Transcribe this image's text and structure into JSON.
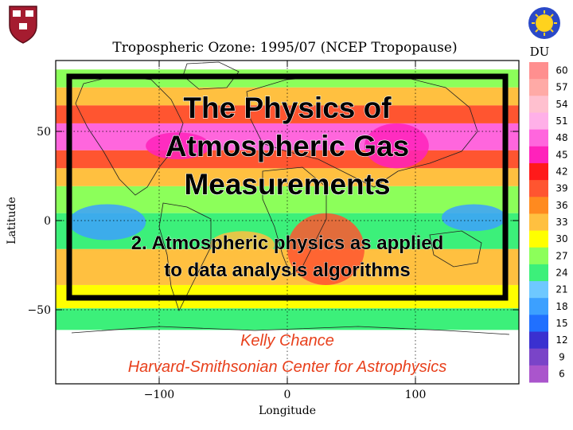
{
  "slide": {
    "title_lines": [
      "The Physics of",
      "Atmospheric Gas",
      "Measurements"
    ],
    "subtitle_lines": [
      "2. Atmospheric physics as applied",
      "to data analysis algorithms"
    ],
    "author": "Kelly Chance",
    "affiliation": "Harvard-Smithsonian Center for Astrophysics"
  },
  "chart_data": {
    "type": "heatmap",
    "title": "Tropospheric Ozone: 1995/07 (NCEP Tropopause)",
    "xlabel": "Longitude",
    "ylabel": "Latitude",
    "xlim": [
      -180,
      180
    ],
    "ylim": [
      -90,
      90
    ],
    "x_ticks": [
      -100,
      0,
      100
    ],
    "x_tick_labels": [
      "−100",
      "0",
      "100"
    ],
    "y_ticks": [
      50,
      0,
      -50
    ],
    "y_tick_labels": [
      "50",
      "0",
      "−50"
    ],
    "grid": "dotted",
    "data_lat_range": [
      -60,
      85
    ],
    "colorbar": {
      "unit": "DU",
      "labels": [
        60,
        57,
        54,
        51,
        48,
        45,
        42,
        39,
        36,
        33,
        30,
        27,
        24,
        21,
        18,
        15,
        12,
        9,
        6
      ],
      "colors": [
        "#ff8f8f",
        "#ffaaa6",
        "#ffc0cf",
        "#ffb0e8",
        "#ff66dd",
        "#ff22bb",
        "#ff1a1a",
        "#ff5530",
        "#ff8a1f",
        "#ffc040",
        "#ffff00",
        "#8cff5a",
        "#3cf07a",
        "#6ec8ff",
        "#3ca0ff",
        "#2070ff",
        "#3a30d0",
        "#7a44c8",
        "#aa55cc"
      ],
      "legend_placement": "right"
    },
    "zonal_bands": [
      {
        "lat": [
          75,
          85
        ],
        "du": 27
      },
      {
        "lat": [
          65,
          75
        ],
        "du": 33
      },
      {
        "lat": [
          55,
          65
        ],
        "du": 40
      },
      {
        "lat": [
          40,
          55
        ],
        "du": 48
      },
      {
        "lat": [
          30,
          40
        ],
        "du": 40
      },
      {
        "lat": [
          20,
          30
        ],
        "du": 33
      },
      {
        "lat": [
          5,
          20
        ],
        "du": 27
      },
      {
        "lat": [
          -15,
          5
        ],
        "du": 24
      },
      {
        "lat": [
          -35,
          -15
        ],
        "du": 33
      },
      {
        "lat": [
          -48,
          -35
        ],
        "du": 30
      },
      {
        "lat": [
          -60,
          -48
        ],
        "du": 24
      }
    ],
    "regional_features": [
      {
        "lon": [
          0,
          60
        ],
        "lat": [
          -35,
          5
        ],
        "du": 39
      },
      {
        "lon": [
          -60,
          -10
        ],
        "lat": [
          -20,
          -5
        ],
        "du": 33
      },
      {
        "lon": [
          60,
          110
        ],
        "lat": [
          30,
          55
        ],
        "du": 45
      },
      {
        "lon": [
          -110,
          -60
        ],
        "lat": [
          35,
          50
        ],
        "du": 45
      },
      {
        "lon": [
          -170,
          -110
        ],
        "lat": [
          -10,
          10
        ],
        "du": 18
      },
      {
        "lon": [
          120,
          170
        ],
        "lat": [
          -5,
          10
        ],
        "du": 18
      }
    ]
  }
}
